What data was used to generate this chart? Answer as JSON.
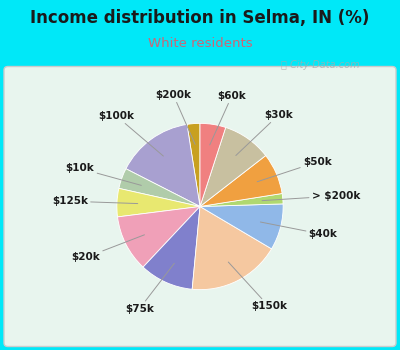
{
  "title": "Income distribution in Selma, IN (%)",
  "subtitle": "White residents",
  "title_color": "#1a1a1a",
  "subtitle_color": "#cc6677",
  "background_outer": "#00e8f8",
  "background_inner_top": "#e0f5ee",
  "background_inner_bot": "#f5fff8",
  "watermark": "Ⓢ City-Data.com",
  "labels": [
    "$200k",
    "$100k",
    "$10k",
    "$125k",
    "$20k",
    "$75k",
    "$150k",
    "$40k",
    "> $200k",
    "$50k",
    "$30k",
    "$60k"
  ],
  "values": [
    2.5,
    15.0,
    4.0,
    5.5,
    11.0,
    10.5,
    18.0,
    9.0,
    2.0,
    8.0,
    9.5,
    5.0
  ],
  "colors": [
    "#c8a020",
    "#a8a0d0",
    "#b0ccaa",
    "#e8e870",
    "#f0a0b8",
    "#8080cc",
    "#f5c8a0",
    "#90b8e8",
    "#b0d870",
    "#f0a040",
    "#c8c0a0",
    "#f08080"
  ],
  "startangle": 90,
  "label_fontsize": 7.5,
  "title_fontsize": 12,
  "subtitle_fontsize": 9.5
}
